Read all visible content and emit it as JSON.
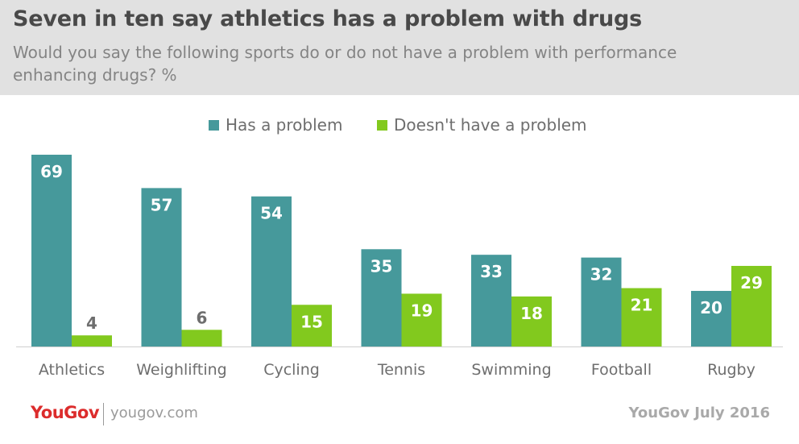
{
  "header": {
    "title": "Seven in ten say athletics has a problem with drugs",
    "subtitle": "Would you say the following sports do or do not have a problem with performance enhancing drugs? %"
  },
  "legend": [
    {
      "label": "Has a problem",
      "color": "#46999b"
    },
    {
      "label": "Doesn't have a problem",
      "color": "#82c91e"
    }
  ],
  "footer": {
    "logo": "YouGov",
    "site": "yougov.com",
    "source": "YouGov July 2016"
  },
  "chart_data": {
    "type": "bar",
    "categories": [
      "Athletics",
      "Weighlifting",
      "Cycling",
      "Tennis",
      "Swimming",
      "Football",
      "Rugby"
    ],
    "series": [
      {
        "name": "Has a problem",
        "values": [
          69,
          57,
          54,
          35,
          33,
          32,
          20
        ],
        "color": "#46999b"
      },
      {
        "name": "Doesn't have a problem",
        "values": [
          4,
          6,
          15,
          19,
          18,
          21,
          29
        ],
        "color": "#82c91e"
      }
    ],
    "ylim": [
      0,
      69
    ],
    "grid": false,
    "legend_position": "top"
  }
}
